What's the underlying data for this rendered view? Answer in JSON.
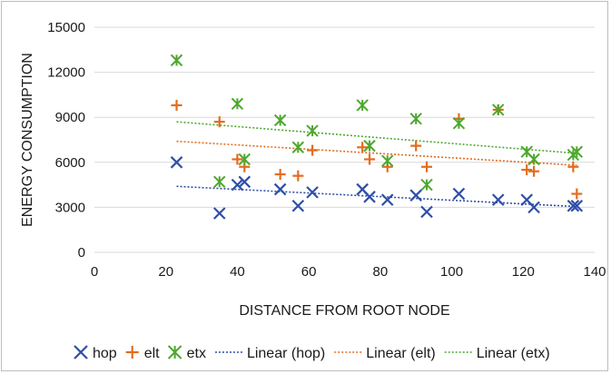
{
  "chart_data": {
    "type": "scatter",
    "title": "",
    "xlabel": "DISTANCE FROM ROOT NODE",
    "ylabel": "ENERGY CONSUMPTION",
    "xlim": [
      0,
      140
    ],
    "ylim": [
      0,
      15000
    ],
    "xticks": [
      0,
      20,
      40,
      60,
      80,
      100,
      120,
      140
    ],
    "yticks": [
      0,
      3000,
      6000,
      9000,
      12000,
      15000
    ],
    "grid": "horizontal",
    "legend_position": "bottom",
    "series": [
      {
        "name": "hop",
        "marker": "x",
        "color": "#2e4ea6",
        "x": [
          23,
          35,
          40,
          42,
          52,
          57,
          61,
          75,
          77,
          82,
          90,
          93,
          102,
          113,
          121,
          123,
          134,
          135
        ],
        "y": [
          6000,
          2600,
          4500,
          4700,
          4200,
          3100,
          4000,
          4200,
          3700,
          3500,
          3800,
          2700,
          3900,
          3500,
          3500,
          3000,
          3100,
          3100
        ]
      },
      {
        "name": "elt",
        "marker": "plus",
        "color": "#e36c1f",
        "x": [
          23,
          35,
          40,
          42,
          52,
          57,
          61,
          75,
          77,
          82,
          90,
          93,
          102,
          113,
          121,
          123,
          134,
          135
        ],
        "y": [
          9800,
          8700,
          6200,
          5700,
          5200,
          5100,
          6800,
          7000,
          6200,
          5700,
          7100,
          5700,
          8900,
          9500,
          5500,
          5400,
          5700,
          3900
        ]
      },
      {
        "name": "etx",
        "marker": "star",
        "color": "#4ea72e",
        "x": [
          23,
          35,
          40,
          42,
          52,
          57,
          61,
          75,
          77,
          82,
          90,
          93,
          102,
          113,
          121,
          123,
          134,
          135
        ],
        "y": [
          12800,
          4700,
          9900,
          6200,
          8800,
          7000,
          8100,
          9800,
          7100,
          6100,
          8900,
          4500,
          8600,
          9500,
          6700,
          6200,
          6500,
          6700
        ]
      }
    ],
    "trendlines": [
      {
        "name": "Linear (hop)",
        "series": "hop",
        "style": "dotted",
        "color": "#2e4ea6",
        "x": [
          23,
          135
        ],
        "y": [
          4400,
          3050
        ]
      },
      {
        "name": "Linear (elt)",
        "series": "elt",
        "style": "dotted",
        "color": "#e36c1f",
        "x": [
          23,
          135
        ],
        "y": [
          7400,
          5800
        ]
      },
      {
        "name": "Linear (etx)",
        "series": "etx",
        "style": "dotted",
        "color": "#4ea72e",
        "x": [
          23,
          135
        ],
        "y": [
          8700,
          6600
        ]
      }
    ],
    "legend": [
      {
        "label": "hop",
        "kind": "marker",
        "marker": "x",
        "color": "#2e4ea6"
      },
      {
        "label": "elt",
        "kind": "marker",
        "marker": "plus",
        "color": "#e36c1f"
      },
      {
        "label": "etx",
        "kind": "marker",
        "marker": "star",
        "color": "#4ea72e"
      },
      {
        "label": "Linear (hop)",
        "kind": "line",
        "color": "#2e4ea6"
      },
      {
        "label": "Linear (elt)",
        "kind": "line",
        "color": "#e36c1f"
      },
      {
        "label": "Linear (etx)",
        "kind": "line",
        "color": "#4ea72e"
      }
    ],
    "colors": {
      "gridline": "#d9d9d9",
      "text": "#1a1a1a"
    }
  }
}
